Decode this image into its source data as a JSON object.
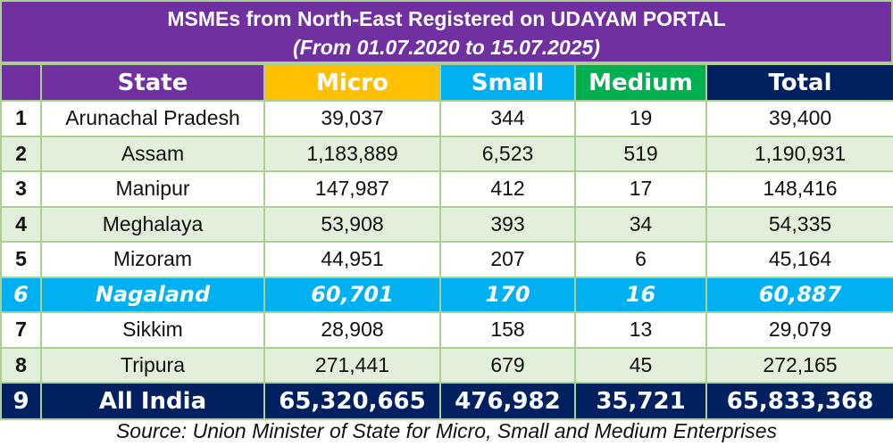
{
  "title": "MSMEs from North-East Registered on UDAYAM PORTAL",
  "subtitle": "(From 01.07.2020 to 15.07.2025)",
  "headers": [
    "",
    "State",
    "Micro",
    "Small",
    "Medium",
    "Total"
  ],
  "header_colors": [
    "#7030a0",
    "#7030a0",
    "#ffc000",
    "#00b0f0",
    "#00b050",
    "#002060"
  ],
  "rows": [
    [
      "1",
      "Arunachal Pradesh",
      "39,037",
      "344",
      "19",
      "39,400"
    ],
    [
      "2",
      "Assam",
      "1,183,889",
      "6,523",
      "519",
      "1,190,931"
    ],
    [
      "3",
      "Manipur",
      "147,987",
      "412",
      "17",
      "148,416"
    ],
    [
      "4",
      "Meghalaya",
      "53,908",
      "393",
      "34",
      "54,335"
    ],
    [
      "5",
      "Mizoram",
      "44,951",
      "207",
      "6",
      "45,164"
    ],
    [
      "6",
      "Nagaland",
      "60,701",
      "170",
      "16",
      "60,887"
    ],
    [
      "7",
      "Sikkim",
      "28,908",
      "158",
      "13",
      "29,079"
    ],
    [
      "8",
      "Tripura",
      "271,441",
      "679",
      "45",
      "272,165"
    ],
    [
      "9",
      "All India",
      "65,320,665",
      "476,982",
      "35,721",
      "65,833,368"
    ]
  ],
  "source": "Source: Union Minister of State for Micro, Small and Medium Enterprises"
}
